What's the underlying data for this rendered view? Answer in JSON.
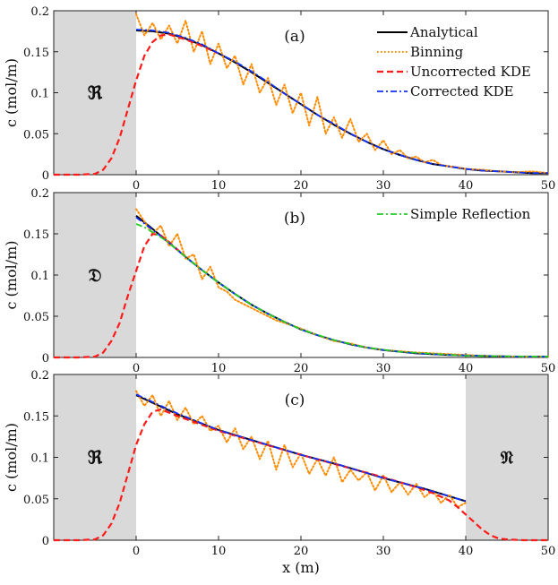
{
  "chart_data": [
    {
      "type": "line",
      "panel_label": "(a)",
      "xlim": [
        -10,
        50
      ],
      "ylim": [
        0,
        0.2
      ],
      "x_ticks": [
        "0",
        "10",
        "20",
        "30",
        "40",
        "50"
      ],
      "y_ticks": [
        "0",
        "0.05",
        "0.1",
        "0.15",
        "0.2"
      ],
      "ylabel": "c (mol/m)",
      "xlabel": "",
      "boundary_regions": [
        {
          "label": "ℜ",
          "x": [
            -10,
            0
          ]
        }
      ],
      "legend_position": "top-right",
      "series": [
        {
          "name": "Analytical",
          "style": "solid",
          "color": "#000000",
          "x": [
            0,
            2,
            4,
            6,
            8,
            10,
            12,
            14,
            16,
            18,
            20,
            22,
            24,
            26,
            28,
            30,
            32,
            34,
            36,
            38,
            40,
            42,
            44,
            46,
            48,
            50
          ],
          "y": [
            0.176,
            0.175,
            0.172,
            0.166,
            0.158,
            0.148,
            0.137,
            0.125,
            0.112,
            0.099,
            0.086,
            0.073,
            0.061,
            0.05,
            0.04,
            0.031,
            0.024,
            0.018,
            0.013,
            0.01,
            0.007,
            0.005,
            0.004,
            0.003,
            0.002,
            0.002
          ]
        },
        {
          "name": "Binning",
          "style": "dotted",
          "color": "#ff8c00",
          "x": [
            0,
            1,
            2,
            3,
            4,
            5,
            6,
            7,
            8,
            9,
            10,
            11,
            12,
            13,
            14,
            15,
            16,
            17,
            18,
            19,
            20,
            21,
            22,
            23,
            24,
            25,
            26,
            27,
            28,
            29,
            30,
            31,
            32,
            33,
            34,
            35,
            36,
            37,
            38,
            39,
            40,
            42,
            44,
            46,
            48,
            50
          ],
          "y": [
            0.196,
            0.17,
            0.185,
            0.165,
            0.182,
            0.16,
            0.188,
            0.15,
            0.175,
            0.135,
            0.16,
            0.13,
            0.145,
            0.11,
            0.135,
            0.1,
            0.118,
            0.085,
            0.11,
            0.075,
            0.1,
            0.06,
            0.095,
            0.05,
            0.07,
            0.045,
            0.068,
            0.04,
            0.05,
            0.03,
            0.042,
            0.025,
            0.03,
            0.02,
            0.022,
            0.015,
            0.018,
            0.012,
            0.01,
            0.009,
            0.007,
            0.006,
            0.004,
            0.003,
            0.004,
            0.002
          ]
        },
        {
          "name": "Uncorrected KDE",
          "style": "dashed",
          "color": "#ff1a1a",
          "x": [
            -10,
            -7,
            -5,
            -4,
            -3,
            -2,
            -1,
            0,
            1,
            2,
            3,
            4,
            6,
            8,
            10
          ],
          "y": [
            0,
            0,
            0.001,
            0.006,
            0.02,
            0.045,
            0.08,
            0.115,
            0.145,
            0.162,
            0.17,
            0.171,
            0.165,
            0.157,
            0.148
          ]
        },
        {
          "name": "Corrected KDE",
          "style": "dashdot",
          "color": "#1030ff",
          "x": [
            0,
            2,
            4,
            6,
            8,
            10,
            12,
            14,
            16,
            18,
            20,
            22,
            24,
            26,
            28,
            30,
            32,
            34,
            36,
            38,
            40,
            42,
            44,
            46,
            48,
            50
          ],
          "y": [
            0.177,
            0.176,
            0.173,
            0.167,
            0.159,
            0.148,
            0.138,
            0.126,
            0.113,
            0.099,
            0.086,
            0.073,
            0.062,
            0.05,
            0.04,
            0.031,
            0.024,
            0.018,
            0.013,
            0.01,
            0.007,
            0.005,
            0.004,
            0.003,
            0.002,
            0.002
          ]
        }
      ]
    },
    {
      "type": "line",
      "panel_label": "(b)",
      "xlim": [
        -10,
        50
      ],
      "ylim": [
        0,
        0.2
      ],
      "x_ticks": [
        "0",
        "10",
        "20",
        "30",
        "40",
        "50"
      ],
      "y_ticks": [
        "0",
        "0.05",
        "0.1",
        "0.15",
        "0.2"
      ],
      "ylabel": "c (mol/m)",
      "xlabel": "",
      "boundary_regions": [
        {
          "label": "𝔇",
          "x": [
            -10,
            0
          ]
        }
      ],
      "legend_position": "top-right",
      "series": [
        {
          "name": "",
          "style": "solid",
          "color": "#000000",
          "x": [
            0,
            2,
            4,
            6,
            8,
            10,
            12,
            14,
            16,
            18,
            20,
            22,
            24,
            26,
            28,
            30,
            34,
            38,
            42,
            46,
            50
          ],
          "y": [
            0.172,
            0.156,
            0.139,
            0.122,
            0.106,
            0.091,
            0.077,
            0.064,
            0.053,
            0.043,
            0.034,
            0.027,
            0.021,
            0.016,
            0.012,
            0.009,
            0.005,
            0.003,
            0.002,
            0.001,
            0.001
          ]
        },
        {
          "name": "",
          "style": "dotted",
          "color": "#ff8c00",
          "x": [
            0,
            1,
            2,
            3,
            4,
            5,
            6,
            7,
            8,
            9,
            10,
            11,
            12,
            13,
            14,
            15,
            16,
            17,
            18,
            20,
            22,
            24,
            26,
            28,
            30,
            34,
            38,
            42,
            46,
            50
          ],
          "y": [
            0.18,
            0.165,
            0.15,
            0.16,
            0.135,
            0.15,
            0.12,
            0.125,
            0.095,
            0.11,
            0.085,
            0.08,
            0.07,
            0.065,
            0.06,
            0.055,
            0.05,
            0.045,
            0.042,
            0.035,
            0.027,
            0.02,
            0.017,
            0.012,
            0.009,
            0.006,
            0.004,
            0.002,
            0.001,
            0.001
          ]
        },
        {
          "name": "",
          "style": "dashed",
          "color": "#ff1a1a",
          "x": [
            -10,
            -7,
            -5,
            -4,
            -3,
            -2,
            -1,
            0,
            1,
            2,
            3,
            4,
            6
          ],
          "y": [
            0,
            0,
            0.001,
            0.006,
            0.02,
            0.042,
            0.075,
            0.105,
            0.135,
            0.15,
            0.148,
            0.14,
            0.122
          ]
        },
        {
          "name": "",
          "style": "dashdot",
          "color": "#1030ff",
          "x": [
            0,
            2,
            4,
            6,
            8,
            10,
            12,
            14,
            16,
            18,
            20,
            22,
            24,
            26,
            28,
            30,
            34,
            38,
            42,
            46,
            50
          ],
          "y": [
            0.17,
            0.155,
            0.139,
            0.122,
            0.106,
            0.091,
            0.077,
            0.064,
            0.053,
            0.043,
            0.034,
            0.027,
            0.021,
            0.016,
            0.012,
            0.009,
            0.005,
            0.003,
            0.002,
            0.001,
            0.001
          ]
        },
        {
          "name": "Simple Reflection",
          "style": "dashdot",
          "color": "#22cc22",
          "x": [
            0,
            1,
            2,
            3,
            4,
            6,
            8,
            10,
            12,
            14,
            16,
            18,
            20,
            24,
            28,
            32,
            40,
            50
          ],
          "y": [
            0.162,
            0.158,
            0.152,
            0.146,
            0.139,
            0.122,
            0.106,
            0.091,
            0.077,
            0.064,
            0.053,
            0.043,
            0.034,
            0.021,
            0.012,
            0.007,
            0.002,
            0.001
          ]
        }
      ]
    },
    {
      "type": "line",
      "panel_label": "(c)",
      "xlim": [
        -10,
        50
      ],
      "ylim": [
        0,
        0.2
      ],
      "x_ticks": [
        "0",
        "10",
        "20",
        "30",
        "40",
        "50"
      ],
      "y_ticks": [
        "0",
        "0.05",
        "0.1",
        "0.15",
        "0.2"
      ],
      "ylabel": "c (mol/m)",
      "xlabel": "x (m)",
      "boundary_regions": [
        {
          "label": "ℜ",
          "x": [
            -10,
            0
          ]
        },
        {
          "label": "𝔑",
          "x": [
            40,
            50
          ]
        }
      ],
      "series": [
        {
          "name": "",
          "style": "solid",
          "color": "#000000",
          "x": [
            0,
            5,
            10,
            15,
            20,
            25,
            30,
            35,
            40
          ],
          "y": [
            0.175,
            0.152,
            0.133,
            0.118,
            0.103,
            0.09,
            0.075,
            0.062,
            0.047
          ]
        },
        {
          "name": "",
          "style": "dotted",
          "color": "#ff8c00",
          "x": [
            0,
            1,
            2,
            3,
            4,
            5,
            6,
            7,
            8,
            9,
            10,
            11,
            12,
            13,
            14,
            15,
            16,
            17,
            18,
            19,
            20,
            21,
            22,
            23,
            24,
            25,
            26,
            27,
            28,
            29,
            30,
            31,
            32,
            33,
            34,
            35,
            36,
            37,
            38,
            39,
            40
          ],
          "y": [
            0.18,
            0.162,
            0.175,
            0.15,
            0.168,
            0.145,
            0.16,
            0.14,
            0.15,
            0.132,
            0.138,
            0.118,
            0.135,
            0.11,
            0.125,
            0.098,
            0.12,
            0.085,
            0.115,
            0.088,
            0.105,
            0.08,
            0.098,
            0.078,
            0.1,
            0.07,
            0.085,
            0.072,
            0.082,
            0.06,
            0.078,
            0.058,
            0.07,
            0.055,
            0.068,
            0.052,
            0.06,
            0.045,
            0.055,
            0.04,
            0.045
          ]
        },
        {
          "name": "",
          "style": "dashed",
          "color": "#ff1a1a",
          "x": [
            -10,
            -7,
            -5,
            -4,
            -3,
            -2,
            -1,
            0,
            1,
            2,
            3,
            5,
            10,
            20,
            30,
            34,
            36,
            38,
            39,
            40,
            41,
            42,
            43,
            44,
            45,
            47,
            50
          ],
          "y": [
            0,
            0,
            0.001,
            0.006,
            0.02,
            0.045,
            0.08,
            0.115,
            0.14,
            0.155,
            0.158,
            0.15,
            0.132,
            0.103,
            0.076,
            0.064,
            0.057,
            0.048,
            0.04,
            0.031,
            0.022,
            0.013,
            0.006,
            0.002,
            0.001,
            0,
            0
          ]
        },
        {
          "name": "",
          "style": "dashdot",
          "color": "#1030ff",
          "x": [
            0,
            5,
            10,
            15,
            20,
            25,
            30,
            35,
            40
          ],
          "y": [
            0.176,
            0.153,
            0.133,
            0.118,
            0.103,
            0.09,
            0.075,
            0.062,
            0.047
          ]
        }
      ]
    }
  ]
}
